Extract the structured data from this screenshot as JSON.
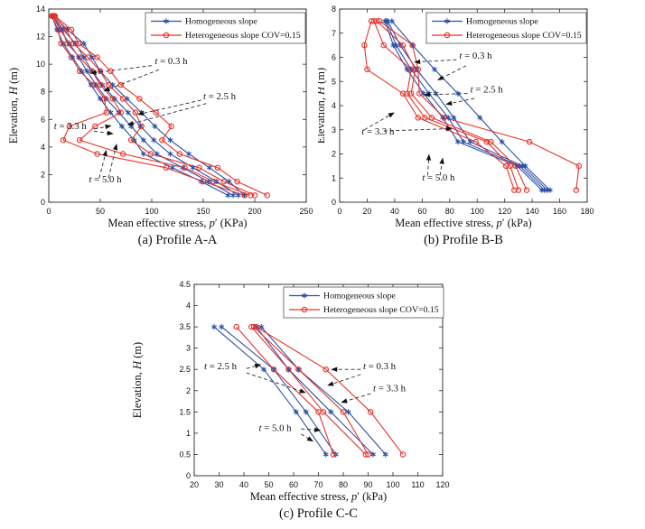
{
  "figure": {
    "background": "#ffffff",
    "colors": {
      "homogeneous": "#2b50a8",
      "heterogeneous": "#e4342b",
      "annotation": "#2a2a2a",
      "axis": "#262626"
    },
    "legend": {
      "items": [
        {
          "key": "homogeneous",
          "label": "Homogeneous slope",
          "marker": "asterisk"
        },
        {
          "key": "heterogeneous",
          "label": "Heterogeneous slope COV=0.15",
          "marker": "circle"
        }
      ]
    }
  },
  "chart_data": [
    {
      "type": "line",
      "id": "profile-aa",
      "caption": "(a) Profile A-A",
      "xlabel": {
        "prefix": "Mean effective stress, ",
        "sym": "p",
        "suffix": "′ (KPa)"
      },
      "ylabel": {
        "prefix": "Elevation, ",
        "sym": "H",
        "suffix": " (m)"
      },
      "xlim": [
        0,
        250
      ],
      "xticks": [
        0,
        50,
        100,
        150,
        200,
        250
      ],
      "ylim": [
        0,
        14
      ],
      "yticks": [
        0,
        2,
        4,
        6,
        8,
        10,
        12,
        14
      ],
      "elevations": [
        13.5,
        12.5,
        11.5,
        10.5,
        9.5,
        8.5,
        7.5,
        6.5,
        5.5,
        4.5,
        3.5,
        2.5,
        1.5,
        0.5
      ],
      "series": [
        {
          "group": "homogeneous",
          "time": "t = 0.3 h",
          "values": [
            5,
            18,
            34,
            42,
            50,
            62,
            76,
            90,
            103,
            118,
            136,
            156,
            175,
            190
          ]
        },
        {
          "group": "homogeneous",
          "time": "t = 2.5 h",
          "values": [
            4,
            14,
            26,
            34,
            42,
            52,
            64,
            77,
            89,
            102,
            118,
            140,
            163,
            184
          ]
        },
        {
          "group": "homogeneous",
          "time": "t = 3.3 h",
          "values": [
            4,
            11,
            20,
            29,
            37,
            46,
            56,
            68,
            80,
            92,
            105,
            130,
            155,
            179
          ]
        },
        {
          "group": "homogeneous",
          "time": "t = 5.0 h",
          "values": [
            3,
            8,
            14,
            23,
            32,
            41,
            50,
            60,
            71,
            83,
            92,
            120,
            148,
            174
          ]
        },
        {
          "group": "heterogeneous",
          "time": "t = 0.3 h",
          "values": [
            6,
            22,
            29,
            47,
            60,
            70,
            88,
            104,
            119,
            110,
            127,
            164,
            183,
            212
          ]
        },
        {
          "group": "heterogeneous",
          "time": "t = 2.5 h",
          "values": [
            5,
            17,
            24,
            38,
            50,
            58,
            72,
            84,
            90,
            80,
            99,
            146,
            170,
            200
          ]
        },
        {
          "group": "heterogeneous",
          "time": "t = 3.3 h",
          "values": [
            4,
            13,
            18,
            30,
            42,
            50,
            62,
            70,
            45,
            30,
            72,
            132,
            160,
            196
          ]
        },
        {
          "group": "heterogeneous",
          "time": "t = 5.0 h",
          "values": [
            3,
            9,
            12,
            22,
            30,
            44,
            54,
            56,
            20,
            14,
            47,
            114,
            150,
            190
          ]
        }
      ],
      "annotations": [
        {
          "sym": "t",
          "text": " = 0.3 h",
          "label": [
            103,
            10.0
          ],
          "arrows": [
            {
              "from": [
                100,
                9.9
              ],
              "to": [
                40,
                9.35
              ]
            },
            {
              "from": [
                107,
                9.6
              ],
              "to": [
                53,
                8.05
              ]
            }
          ]
        },
        {
          "sym": "t",
          "text": " = 2.5 h",
          "label": [
            150,
            7.45
          ],
          "arrows": [
            {
              "from": [
                148,
                7.4
              ],
              "to": [
                86,
                6.35
              ]
            },
            {
              "from": [
                153,
                7.15
              ],
              "to": [
                76,
                5.6
              ]
            }
          ]
        },
        {
          "sym": "t",
          "text": " = 3.3 h",
          "label": [
            5,
            5.3
          ],
          "arrows": [
            {
              "from": [
                44,
                5.3
              ],
              "to": [
                61,
                5.55
              ]
            },
            {
              "from": [
                44,
                5.15
              ],
              "to": [
                63,
                4.95
              ]
            }
          ]
        },
        {
          "sym": "t",
          "text": " = 5.0 h",
          "label": [
            39,
            1.45
          ],
          "arrows": [
            {
              "from": [
                49,
                1.75
              ],
              "to": [
                56,
                3.8
              ]
            },
            {
              "from": [
                58,
                1.75
              ],
              "to": [
                66,
                4.25
              ]
            }
          ]
        }
      ]
    },
    {
      "type": "line",
      "id": "profile-bb",
      "caption": "(b) Profile B-B",
      "xlabel": {
        "prefix": "Mean effective stress, ",
        "sym": "p",
        "suffix": "′ (kPa)"
      },
      "ylabel": {
        "prefix": "Elevation, ",
        "sym": "H",
        "suffix": " (m)"
      },
      "xlim": [
        0,
        180
      ],
      "xticks": [
        0,
        20,
        40,
        60,
        80,
        100,
        120,
        140,
        160,
        180
      ],
      "ylim": [
        0,
        8
      ],
      "yticks": [
        0,
        1,
        2,
        3,
        4,
        5,
        6,
        7,
        8
      ],
      "elevations": [
        7.5,
        6.5,
        5.5,
        4.5,
        3.5,
        2.5,
        1.5,
        0.5
      ],
      "series": [
        {
          "group": "homogeneous",
          "time": "t = 0.3 h",
          "values": [
            38,
            53,
            69,
            86,
            102,
            118,
            135,
            153
          ]
        },
        {
          "group": "homogeneous",
          "time": "t = 2.5 h",
          "values": [
            35,
            44,
            56,
            70,
            83,
            95,
            133,
            151
          ]
        },
        {
          "group": "homogeneous",
          "time": "t = 3.3 h",
          "values": [
            34,
            41,
            52,
            65,
            79,
            90,
            131,
            149
          ]
        },
        {
          "group": "homogeneous",
          "time": "t = 5.0 h",
          "values": [
            33,
            39,
            49,
            61,
            75,
            86,
            129,
            147
          ]
        },
        {
          "group": "heterogeneous",
          "time": "t = 0.3 h",
          "values": [
            29,
            53,
            57,
            58,
            76,
            138,
            174,
            172
          ]
        },
        {
          "group": "heterogeneous",
          "time": "t = 2.5 h",
          "values": [
            27,
            46,
            55,
            52,
            67,
            110,
            128,
            136
          ]
        },
        {
          "group": "heterogeneous",
          "time": "t = 3.3 h",
          "values": [
            25,
            32,
            52,
            49,
            62,
            107,
            124,
            130
          ]
        },
        {
          "group": "heterogeneous",
          "time": "t = 5.0 h",
          "values": [
            23,
            18,
            20,
            46,
            57,
            99,
            121,
            127
          ]
        }
      ],
      "annotations": [
        {
          "sym": "t",
          "text": " = 0.3 h",
          "label": [
            87,
            5.95
          ],
          "arrows": [
            {
              "from": [
                85,
                5.9
              ],
              "to": [
                54,
                5.8
              ]
            },
            {
              "from": [
                92,
                5.65
              ],
              "to": [
                71,
                5.05
              ]
            }
          ]
        },
        {
          "sym": "t",
          "text": " = 2.5 h",
          "label": [
            95,
            4.55
          ],
          "arrows": [
            {
              "from": [
                93,
                4.5
              ],
              "to": [
                61,
                4.45
              ]
            },
            {
              "from": [
                98,
                4.3
              ],
              "to": [
                77,
                4.05
              ]
            }
          ]
        },
        {
          "sym": "t",
          "text": " = 3.3 h",
          "label": [
            16,
            2.8
          ],
          "arrows": [
            {
              "from": [
                18,
                3.0
              ],
              "to": [
                40,
                3.72
              ]
            },
            {
              "from": [
                32,
                2.95
              ],
              "to": [
                82,
                3.05
              ]
            }
          ]
        },
        {
          "sym": "t",
          "text": " = 5.0 h",
          "label": [
            60,
            0.9
          ],
          "arrows": [
            {
              "from": [
                64,
                1.1
              ],
              "to": [
                65,
                2.0
              ]
            },
            {
              "from": [
                73,
                1.1
              ],
              "to": [
                75,
                1.85
              ]
            }
          ]
        }
      ]
    },
    {
      "type": "line",
      "id": "profile-cc",
      "caption": "(c) Profile C-C",
      "xlabel": {
        "prefix": "Mean effective stress, ",
        "sym": "p",
        "suffix": "′ (kPa)"
      },
      "ylabel": {
        "prefix": "Elevation, ",
        "sym": "H",
        "suffix": " (m)"
      },
      "xlim": [
        20,
        120
      ],
      "xticks": [
        20,
        30,
        40,
        50,
        60,
        70,
        80,
        90,
        100,
        110,
        120
      ],
      "ylim": [
        0,
        4.5
      ],
      "yticks": [
        0,
        0.5,
        1,
        1.5,
        2,
        2.5,
        3,
        3.5,
        4,
        4.5
      ],
      "elevations": [
        3.5,
        2.5,
        1.5,
        0.5
      ],
      "series": [
        {
          "group": "homogeneous",
          "time": "t = 0.3 h",
          "values": [
            47,
            62,
            82,
            97
          ]
        },
        {
          "group": "homogeneous",
          "time": "t = 2.5 h",
          "values": [
            45,
            58,
            75,
            92
          ]
        },
        {
          "group": "homogeneous",
          "time": "t = 3.3 h",
          "values": [
            31,
            52,
            65,
            77
          ]
        },
        {
          "group": "homogeneous",
          "time": "t = 5.0 h",
          "values": [
            28,
            48,
            61,
            73
          ]
        },
        {
          "group": "heterogeneous",
          "time": "t = 0.3 h",
          "values": [
            45,
            73,
            91,
            104
          ]
        },
        {
          "group": "heterogeneous",
          "time": "t = 2.5 h",
          "values": [
            44,
            62,
            80,
            90
          ]
        },
        {
          "group": "heterogeneous",
          "time": "t = 3.3 h",
          "values": [
            43,
            58,
            72,
            89
          ]
        },
        {
          "group": "heterogeneous",
          "time": "t = 5.0 h",
          "values": [
            37,
            52,
            70,
            76
          ]
        }
      ],
      "annotations": [
        {
          "sym": "t",
          "text": " = 2.5 h",
          "label": [
            24,
            2.5
          ],
          "arrows": [
            {
              "from": [
                41,
                2.52
              ],
              "to": [
                47,
                2.62
              ]
            },
            {
              "from": [
                41,
                2.42
              ],
              "to": [
                65,
                1.95
              ]
            }
          ]
        },
        {
          "sym": "t",
          "text": " = 0.3 h",
          "label": [
            88,
            2.5
          ],
          "arrows": [
            {
              "from": [
                87,
                2.5
              ],
              "to": [
                75,
                2.5
              ]
            },
            {
              "from": [
                87,
                2.38
              ],
              "to": [
                73.5,
                2.12
              ]
            }
          ]
        },
        {
          "sym": "t",
          "text": " = 3.3 h",
          "label": [
            92,
            1.98
          ],
          "arrows": [
            {
              "from": [
                91,
                1.93
              ],
              "to": [
                79,
                1.72
              ]
            }
          ]
        },
        {
          "sym": "t",
          "text": " = 5.0 h",
          "label": [
            46,
            1.05
          ],
          "arrows": [
            {
              "from": [
                63,
                1.1
              ],
              "to": [
                71,
                1.07
              ]
            },
            {
              "from": [
                63,
                0.98
              ],
              "to": [
                68,
                0.8
              ]
            }
          ]
        }
      ]
    }
  ]
}
